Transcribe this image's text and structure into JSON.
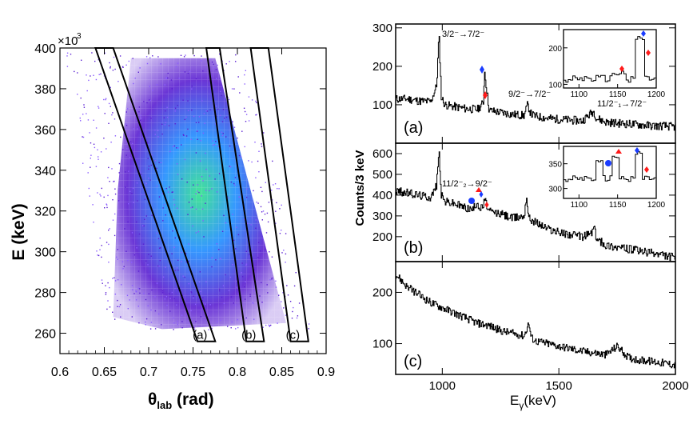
{
  "colors": {
    "scatter_low": "#5a1fd1",
    "scatter_mid": "#1f8dff",
    "scatter_high": "#2fe08c",
    "diamond_blue": "#1a3cff",
    "diamond_red": "#ff1a1a"
  },
  "left_plot": {
    "xlabel": "θlab (rad)",
    "xlabel_main": "θ",
    "xlabel_sub": "lab",
    "xlabel_rest": " (rad)",
    "ylabel": "E (keV)",
    "exponent": "×10",
    "exponent_power": "3",
    "x_ticks": [
      "0.6",
      "0.65",
      "0.7",
      "0.75",
      "0.8",
      "0.85",
      "0.9"
    ],
    "y_ticks": [
      "260",
      "280",
      "300",
      "320",
      "340",
      "360",
      "380",
      "400"
    ],
    "gate_labels": [
      "(c)",
      "(b)",
      "(a)"
    ]
  },
  "right_plot": {
    "ylabel": "Counts/3 keV",
    "xlabel": "Eγ(keV)",
    "xlabel_main": "E",
    "xlabel_sub": "γ",
    "xlabel_rest": "(keV)",
    "x_ticks": [
      "1000",
      "1500",
      "2000"
    ],
    "panels": [
      {
        "label": "(a)",
        "y_ticks": [
          "100",
          "200",
          "300"
        ],
        "annotations": [
          "3/2⁻→7/2⁻",
          "9/2⁻→7/2⁻",
          "11/2⁻₁→7/2⁻"
        ],
        "inset_x_ticks": [
          "1100",
          "1150",
          "1200"
        ],
        "inset_y_ticks": [
          "100",
          "200"
        ]
      },
      {
        "label": "(b)",
        "y_ticks": [
          "200",
          "300",
          "400",
          "500",
          "600"
        ],
        "annotations": [
          "11/2⁻₂→9/2⁻"
        ],
        "inset_x_ticks": [
          "1100",
          "1150",
          "1200"
        ],
        "inset_y_ticks": [
          "300",
          "350"
        ]
      },
      {
        "label": "(c)",
        "y_ticks": [
          "100",
          "200"
        ],
        "annotations": []
      }
    ]
  },
  "chart_data": [
    {
      "type": "heatmap",
      "title": "",
      "xlabel": "θlab (rad)",
      "ylabel": "E (keV)",
      "xlim": [
        0.6,
        0.9
      ],
      "ylim": [
        250000,
        400000
      ],
      "y_multiplier": "×10^3",
      "description_values": {
        "band_center_top": [
          0.73,
          395000
        ],
        "band_center_bottom": [
          0.78,
          265000
        ]
      },
      "gates": [
        {
          "label": "(a)",
          "polygon": [
            [
              0.815,
              400000
            ],
            [
              0.835,
              400000
            ],
            [
              0.88,
              256000
            ],
            [
              0.86,
              256000
            ]
          ]
        },
        {
          "label": "(b)",
          "polygon": [
            [
              0.765,
              400000
            ],
            [
              0.78,
              400000
            ],
            [
              0.83,
              256000
            ],
            [
              0.81,
              256000
            ]
          ]
        },
        {
          "label": "(c)",
          "polygon": [
            [
              0.64,
              400000
            ],
            [
              0.66,
              400000
            ],
            [
              0.775,
              256000
            ],
            [
              0.755,
              256000
            ]
          ]
        }
      ]
    },
    {
      "type": "line",
      "title": "(a)",
      "xlabel": "Eγ(keV)",
      "ylabel": "Counts/3 keV",
      "xlim": [
        800,
        2000
      ],
      "ylim": [
        0,
        310
      ],
      "series": [
        {
          "x": [
            800,
            850,
            900,
            950,
            975,
            985,
            995,
            1010,
            1050,
            1100,
            1150,
            1175,
            1180,
            1200,
            1250,
            1300,
            1350,
            1365,
            1380,
            1400,
            1450,
            1500,
            1550,
            1600,
            1640,
            1650,
            1660,
            1700,
            1750,
            1800,
            1850,
            1900,
            1950,
            2000
          ],
          "values": [
            115,
            115,
            110,
            108,
            150,
            285,
            120,
            100,
            95,
            90,
            88,
            105,
            190,
            85,
            80,
            75,
            72,
            100,
            75,
            70,
            65,
            62,
            60,
            58,
            80,
            82,
            65,
            55,
            52,
            50,
            48,
            45,
            45,
            42
          ]
        }
      ],
      "inset": {
        "xlim": [
          1080,
          1200
        ],
        "ylim": [
          90,
          250
        ]
      }
    },
    {
      "type": "line",
      "title": "(b)",
      "xlabel": "Eγ(keV)",
      "ylabel": "Counts/3 keV",
      "xlim": [
        800,
        2000
      ],
      "ylim": [
        80,
        650
      ],
      "series": [
        {
          "x": [
            800,
            850,
            900,
            950,
            975,
            985,
            995,
            1010,
            1050,
            1100,
            1130,
            1150,
            1160,
            1175,
            1180,
            1200,
            1250,
            1300,
            1350,
            1360,
            1370,
            1400,
            1450,
            1500,
            1550,
            1600,
            1640,
            1650,
            1660,
            1700,
            1750,
            1800,
            1850,
            1900,
            1950,
            2000
          ],
          "values": [
            420,
            410,
            400,
            390,
            450,
            620,
            400,
            370,
            360,
            340,
            330,
            370,
            330,
            350,
            380,
            320,
            310,
            290,
            300,
            400,
            290,
            270,
            240,
            220,
            210,
            200,
            220,
            250,
            190,
            160,
            150,
            140,
            130,
            120,
            110,
            100
          ]
        }
      ],
      "inset": {
        "xlim": [
          1080,
          1200
        ],
        "ylim": [
          280,
          385
        ]
      }
    },
    {
      "type": "line",
      "title": "(c)",
      "xlabel": "Eγ(keV)",
      "ylabel": "Counts/3 keV",
      "xlim": [
        800,
        2000
      ],
      "ylim": [
        40,
        260
      ],
      "series": [
        {
          "x": [
            800,
            850,
            900,
            950,
            1000,
            1050,
            1100,
            1150,
            1200,
            1250,
            1300,
            1350,
            1370,
            1380,
            1400,
            1450,
            1500,
            1550,
            1600,
            1650,
            1700,
            1750,
            1800,
            1850,
            1900,
            1950,
            2000
          ],
          "values": [
            235,
            210,
            195,
            180,
            170,
            160,
            150,
            140,
            135,
            125,
            120,
            115,
            140,
            112,
            105,
            100,
            95,
            90,
            85,
            82,
            78,
            95,
            72,
            68,
            65,
            62,
            58
          ]
        }
      ]
    }
  ]
}
